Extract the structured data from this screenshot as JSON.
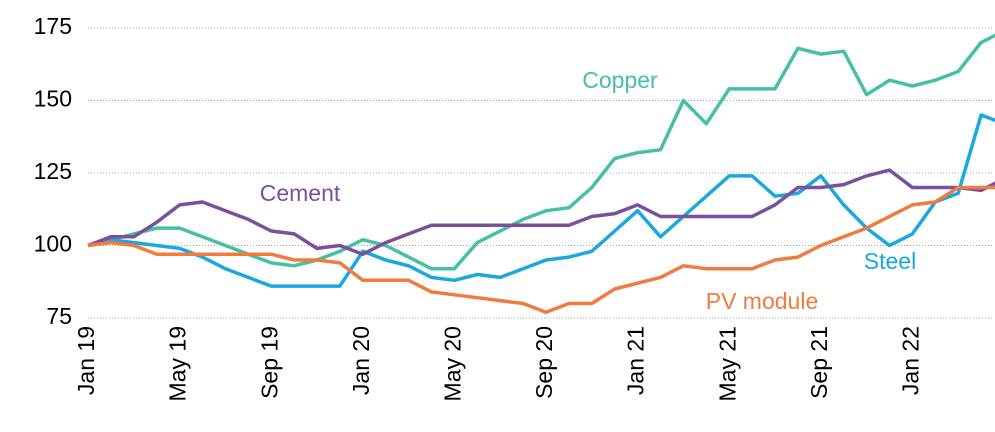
{
  "chart_data": {
    "type": "line",
    "categories": [
      "Jan 19",
      null,
      null,
      null,
      "May 19",
      null,
      null,
      null,
      "Sep 19",
      null,
      null,
      null,
      "Jan 20",
      null,
      null,
      null,
      "May 20",
      null,
      null,
      null,
      "Sep 20",
      null,
      null,
      null,
      "Jan 21",
      null,
      null,
      null,
      "May 21",
      null,
      null,
      null,
      "Sep 21",
      null,
      null,
      null,
      "Jan 22",
      null,
      null,
      null,
      null
    ],
    "series": [
      {
        "name": "Copper",
        "color": "#45c0a2",
        "values": [
          100,
          102,
          104,
          106,
          106,
          103,
          100,
          97,
          94,
          93,
          95,
          98,
          102,
          100,
          96,
          92,
          92,
          101,
          105,
          109,
          112,
          113,
          120,
          130,
          132,
          133,
          150,
          142,
          154,
          154,
          154,
          168,
          166,
          167,
          152,
          157,
          155,
          157,
          160,
          170,
          174
        ]
      },
      {
        "name": "Steel",
        "color": "#1aa8df",
        "values": [
          100,
          102,
          101,
          100,
          99,
          96,
          92,
          89,
          86,
          86,
          86,
          86,
          98,
          95,
          93,
          89,
          88,
          90,
          89,
          92,
          95,
          96,
          98,
          105,
          112,
          103,
          110,
          117,
          124,
          124,
          117,
          118,
          124,
          114,
          106,
          100,
          104,
          115,
          118,
          145,
          142
        ]
      },
      {
        "name": "Cement",
        "color": "#7a4f9e",
        "values": [
          100,
          103,
          103,
          108,
          114,
          115,
          112,
          109,
          105,
          104,
          99,
          100,
          97,
          101,
          104,
          107,
          107,
          107,
          107,
          107,
          107,
          107,
          110,
          111,
          114,
          110,
          110,
          110,
          110,
          110,
          114,
          120,
          120,
          121,
          124,
          126,
          120,
          120,
          120,
          119,
          123
        ]
      },
      {
        "name": "PV module",
        "color": "#f07b3f",
        "values": [
          100,
          101,
          100,
          97,
          97,
          97,
          97,
          97,
          97,
          95,
          95,
          94,
          88,
          88,
          88,
          84,
          83,
          82,
          81,
          80,
          77,
          80,
          80,
          85,
          87,
          89,
          93,
          92,
          92,
          92,
          95,
          96,
          100,
          103,
          106,
          110,
          114,
          115,
          120,
          120,
          120
        ]
      }
    ],
    "ylim": [
      75,
      175
    ],
    "yticks": [
      75,
      100,
      125,
      150,
      175
    ],
    "grid": true
  }
}
